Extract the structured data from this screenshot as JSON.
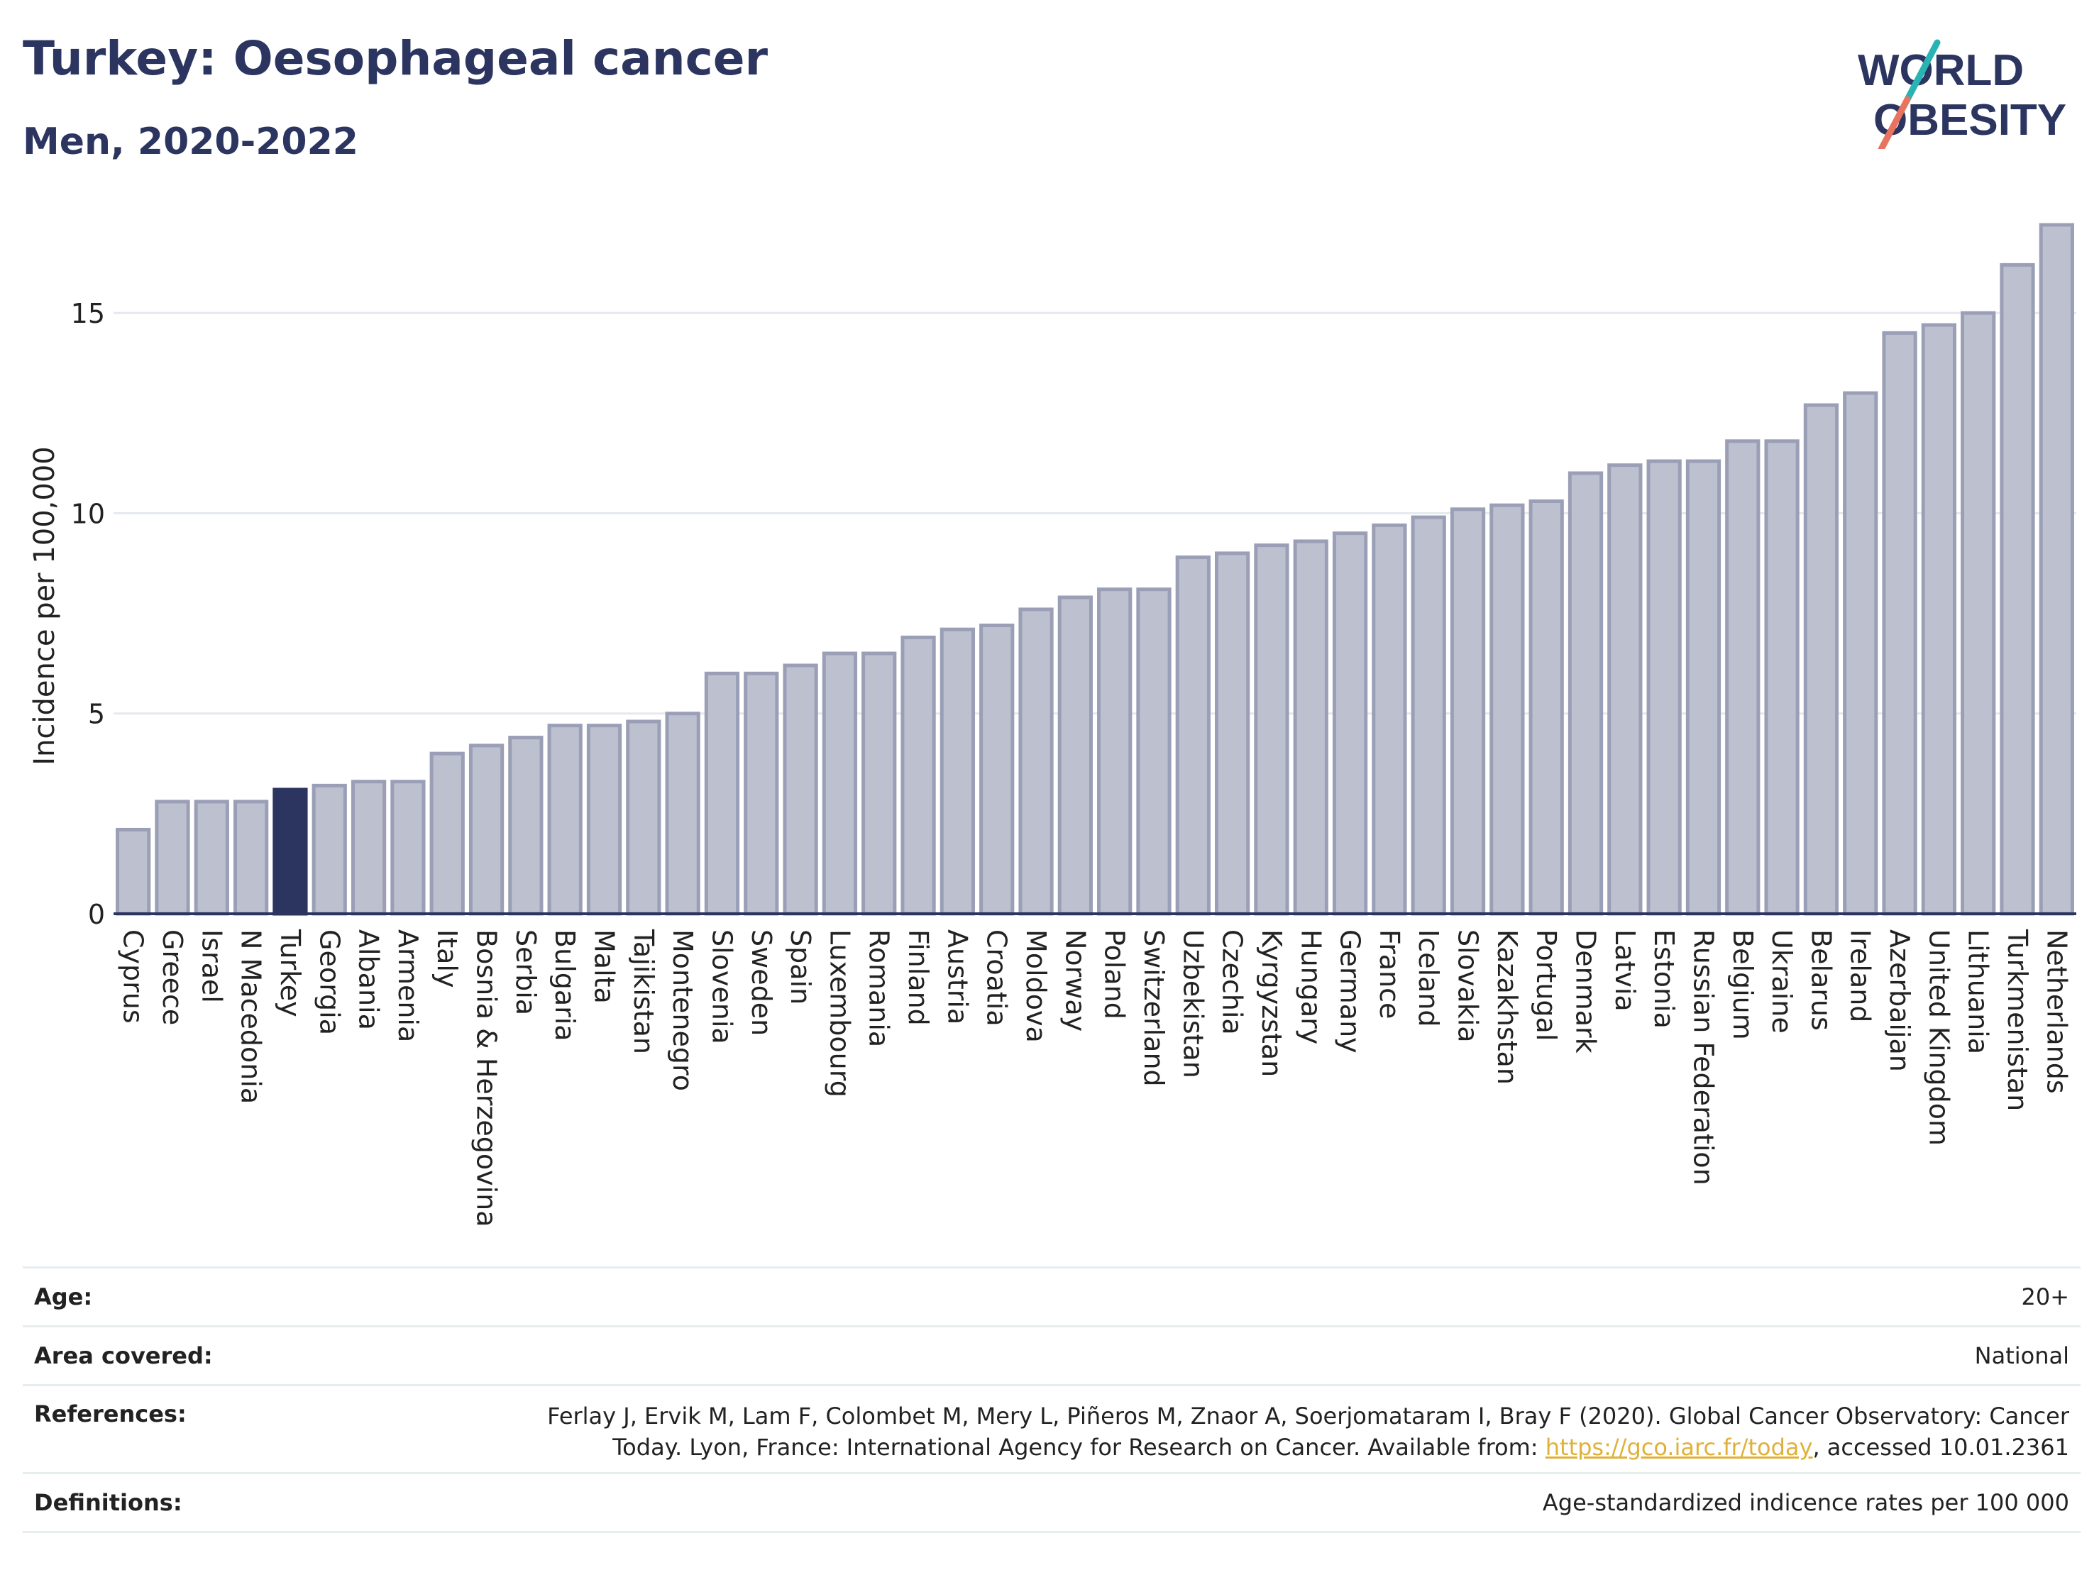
{
  "header": {
    "title": "Turkey: Oesophageal cancer",
    "subtitle": "Men, 2020-2022"
  },
  "logo": {
    "line1": "WORLD",
    "line2": "OBESITY",
    "colors": {
      "text": "#2b3560",
      "slash_teal": "#2ab3b3",
      "slash_coral": "#e8735e"
    }
  },
  "chart_data": {
    "type": "bar",
    "ylabel": "Incidence per 100,000",
    "ylim": [
      0,
      17.5
    ],
    "yticks": [
      0,
      5,
      10,
      15
    ],
    "grid": true,
    "highlight": "Turkey",
    "colors": {
      "bar": "#bcc0cf",
      "bar_edge": "#9a9fb6",
      "highlight": "#2b3560",
      "axis": "#2b3560",
      "grid": "#e5e8ee"
    },
    "categories": [
      "Cyprus",
      "Greece",
      "Israel",
      "N Macedonia",
      "Turkey",
      "Georgia",
      "Albania",
      "Armenia",
      "Italy",
      "Bosnia & Herzegovina",
      "Serbia",
      "Bulgaria",
      "Malta",
      "Tajikistan",
      "Montenegro",
      "Slovenia",
      "Sweden",
      "Spain",
      "Luxembourg",
      "Romania",
      "Finland",
      "Austria",
      "Croatia",
      "Moldova",
      "Norway",
      "Poland",
      "Switzerland",
      "Uzbekistan",
      "Czechia",
      "Kyrgyzstan",
      "Hungary",
      "Germany",
      "France",
      "Iceland",
      "Slovakia",
      "Kazakhstan",
      "Portugal",
      "Denmark",
      "Latvia",
      "Estonia",
      "Russian Federation",
      "Belgium",
      "Ukraine",
      "Belarus",
      "Ireland",
      "Azerbaijan",
      "United Kingdom",
      "Lithuania",
      "Turkmenistan",
      "Netherlands"
    ],
    "values": [
      2.1,
      2.8,
      2.8,
      2.8,
      3.1,
      3.2,
      3.3,
      3.3,
      4.0,
      4.2,
      4.4,
      4.7,
      4.7,
      4.8,
      5.0,
      6.0,
      6.0,
      6.2,
      6.5,
      6.5,
      6.9,
      7.1,
      7.2,
      7.6,
      7.9,
      8.1,
      8.1,
      8.9,
      9.0,
      9.2,
      9.3,
      9.5,
      9.7,
      9.9,
      10.1,
      10.2,
      10.3,
      11.0,
      11.2,
      11.3,
      11.3,
      11.8,
      11.8,
      12.7,
      13.0,
      14.5,
      14.7,
      15.0,
      16.2,
      17.2
    ]
  },
  "info": {
    "age": {
      "label": "Age:",
      "value": "20+"
    },
    "area": {
      "label": "Area covered:",
      "value": "National"
    },
    "references": {
      "label": "References:",
      "line1": "Ferlay J, Ervik M, Lam F, Colombet M, Mery L, Piñeros M, Znaor A, Soerjomataram I, Bray F (2020). Global Cancer Observatory: Cancer",
      "line2_pre": "Today. Lyon, France: International Agency for Research on Cancer. Available from: ",
      "link": "https://gco.iarc.fr/today",
      "line2_post": ", accessed 10.01.2361"
    },
    "definitions": {
      "label": "Definitions:",
      "value": "Age-standardized indicence rates per 100 000"
    }
  }
}
